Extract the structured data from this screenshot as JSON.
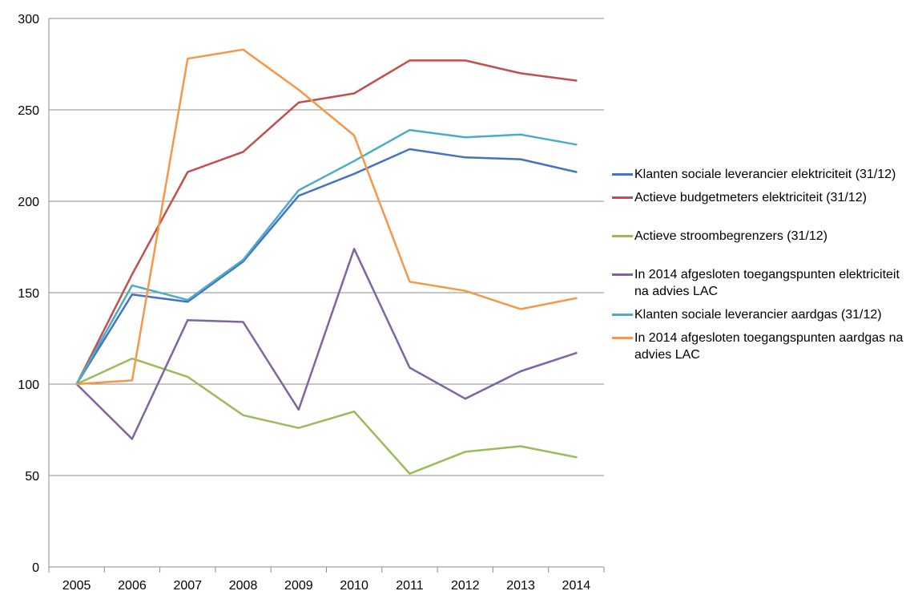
{
  "chart_data": {
    "type": "line",
    "title": "",
    "xlabel": "",
    "ylabel": "",
    "x": [
      "2005",
      "2006",
      "2007",
      "2008",
      "2009",
      "2010",
      "2011",
      "2012",
      "2013",
      "2014"
    ],
    "ylim": [
      0,
      300
    ],
    "yticks": [
      "0",
      "50",
      "100",
      "150",
      "200",
      "250",
      "300"
    ],
    "grid": "horizontal",
    "legend_position": "right",
    "series": [
      {
        "name": "Klanten sociale leverancier elektriciteit (31/12)",
        "color": "#4472c4",
        "values": [
          100,
          149,
          145,
          167,
          203,
          215,
          228.5,
          224,
          223,
          216
        ]
      },
      {
        "name": "Actieve budgetmeters elektriciteit (31/12)",
        "color": "#c0504d",
        "values": [
          100,
          160,
          216,
          227,
          254,
          259,
          277,
          277,
          270,
          266
        ]
      },
      {
        "name": "Actieve stroombegrenzers (31/12)",
        "color": "#9bbb59",
        "values": [
          100,
          114,
          104,
          83,
          76,
          85,
          51,
          63,
          66,
          60
        ]
      },
      {
        "name": "In 2014 afgesloten toegangspunten elektriciteit na advies LAC",
        "color": "#8064a2",
        "values": [
          100,
          70,
          135,
          134,
          86,
          174,
          109,
          92,
          107,
          117
        ]
      },
      {
        "name": "Klanten sociale leverancier aardgas (31/12)",
        "color": "#4bacc6",
        "values": [
          100,
          154,
          146,
          168,
          206,
          222,
          239,
          235,
          236.5,
          231
        ]
      },
      {
        "name": "In 2014 afgesloten toegangspunten aardgas na advies LAC",
        "color": "#f79646",
        "values": [
          100,
          102,
          278,
          283,
          261,
          236,
          156,
          151,
          141,
          147
        ]
      }
    ]
  }
}
